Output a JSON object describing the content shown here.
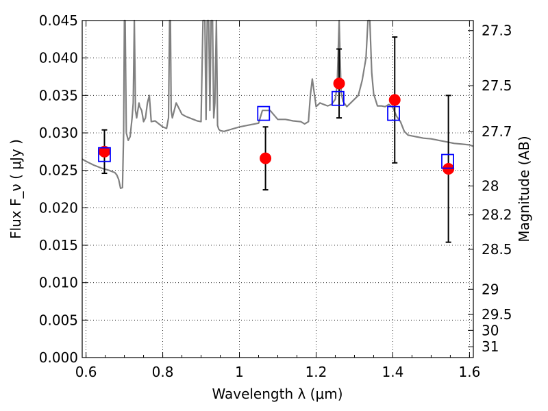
{
  "chart_data": {
    "type": "scatter",
    "xlabel": "Wavelength  λ (μm)",
    "ylabel": "Flux  F_ν  ( μJy )",
    "y2label": "Magnitude (AB)",
    "xlim": [
      0.59,
      1.61
    ],
    "ylim": [
      0.0,
      0.045
    ],
    "grid": true,
    "x_ticks": [
      "0.6",
      "0.8",
      "1",
      "1.2",
      "1.4",
      "1.6"
    ],
    "x_tick_values": [
      0.6,
      0.8,
      1.0,
      1.2,
      1.4,
      1.6
    ],
    "y_ticks": [
      "0.000",
      "0.005",
      "0.010",
      "0.015",
      "0.020",
      "0.025",
      "0.030",
      "0.035",
      "0.040",
      "0.045"
    ],
    "y_tick_values": [
      0.0,
      0.005,
      0.01,
      0.015,
      0.02,
      0.025,
      0.03,
      0.035,
      0.04,
      0.045
    ],
    "y2_ticks": [
      "27.3",
      "27.5",
      "27.7",
      "28",
      "28.2",
      "28.5",
      "29",
      "29.5",
      "30",
      "31"
    ],
    "y2_tick_values": [
      27.3,
      27.5,
      27.7,
      28.0,
      28.2,
      28.5,
      29.0,
      29.5,
      30.0,
      31.0
    ],
    "series": [
      {
        "marker": "filled-circle",
        "color": "#ff0000",
        "x": [
          0.648,
          1.068,
          1.26,
          1.405,
          1.545
        ],
        "y": [
          0.0275,
          0.0266,
          0.0366,
          0.0344,
          0.0252
        ],
        "yerr": [
          0.0029,
          0.0042,
          0.0046,
          0.0084,
          0.0098
        ]
      },
      {
        "marker": "open-square",
        "color": "#0000ff",
        "x": [
          0.648,
          1.063,
          1.257,
          1.402,
          1.543
        ],
        "y": [
          0.0271,
          0.0326,
          0.0346,
          0.0326,
          0.0262
        ]
      },
      {
        "marker": "line",
        "color": "#808080",
        "x": [
          0.59,
          0.6,
          0.62,
          0.64,
          0.66,
          0.67,
          0.675,
          0.68,
          0.685,
          0.69,
          0.695,
          0.698,
          0.7,
          0.702,
          0.705,
          0.71,
          0.715,
          0.72,
          0.723,
          0.726,
          0.729,
          0.732,
          0.735,
          0.738,
          0.74,
          0.745,
          0.75,
          0.755,
          0.76,
          0.765,
          0.77,
          0.78,
          0.79,
          0.8,
          0.81,
          0.815,
          0.818,
          0.82,
          0.822,
          0.825,
          0.83,
          0.835,
          0.84,
          0.845,
          0.85,
          0.86,
          0.87,
          0.88,
          0.89,
          0.9,
          0.905,
          0.91,
          0.913,
          0.916,
          0.92,
          0.923,
          0.926,
          0.93,
          0.933,
          0.936,
          0.94,
          0.943,
          0.946,
          0.95,
          0.96,
          0.98,
          1.0,
          1.02,
          1.05,
          1.06,
          1.08,
          1.1,
          1.12,
          1.14,
          1.16,
          1.17,
          1.18,
          1.185,
          1.19,
          1.2,
          1.21,
          1.22,
          1.23,
          1.24,
          1.25,
          1.255,
          1.26,
          1.265,
          1.27,
          1.28,
          1.29,
          1.3,
          1.31,
          1.32,
          1.33,
          1.335,
          1.34,
          1.345,
          1.35,
          1.36,
          1.37,
          1.38,
          1.39,
          1.4,
          1.41,
          1.42,
          1.43,
          1.44,
          1.45,
          1.46,
          1.48,
          1.5,
          1.52,
          1.54,
          1.56,
          1.58,
          1.6,
          1.61
        ],
        "y": [
          0.0265,
          0.0262,
          0.0257,
          0.0253,
          0.025,
          0.0248,
          0.0247,
          0.0244,
          0.0238,
          0.0226,
          0.0227,
          0.03,
          0.045,
          0.045,
          0.03,
          0.029,
          0.0295,
          0.032,
          0.034,
          0.045,
          0.033,
          0.032,
          0.033,
          0.034,
          0.0335,
          0.033,
          0.0315,
          0.032,
          0.034,
          0.035,
          0.0315,
          0.0316,
          0.0312,
          0.0308,
          0.0306,
          0.032,
          0.045,
          0.045,
          0.033,
          0.032,
          0.033,
          0.034,
          0.0335,
          0.033,
          0.0325,
          0.0322,
          0.032,
          0.0318,
          0.0316,
          0.0315,
          0.045,
          0.045,
          0.0318,
          0.045,
          0.045,
          0.033,
          0.045,
          0.045,
          0.032,
          0.034,
          0.045,
          0.031,
          0.0305,
          0.0303,
          0.0302,
          0.0305,
          0.0308,
          0.031,
          0.0313,
          0.033,
          0.033,
          0.0318,
          0.0318,
          0.0316,
          0.0315,
          0.0312,
          0.0315,
          0.035,
          0.0372,
          0.0335,
          0.034,
          0.0338,
          0.0336,
          0.0338,
          0.0345,
          0.0365,
          0.045,
          0.0355,
          0.0342,
          0.0335,
          0.034,
          0.0345,
          0.035,
          0.037,
          0.04,
          0.045,
          0.045,
          0.038,
          0.0352,
          0.0336,
          0.0336,
          0.0335,
          0.0338,
          0.0334,
          0.0322,
          0.0315,
          0.0302,
          0.0297,
          0.0296,
          0.0295,
          0.0293,
          0.0292,
          0.029,
          0.0288,
          0.0286,
          0.0285,
          0.0284,
          0.0282
        ]
      }
    ]
  }
}
